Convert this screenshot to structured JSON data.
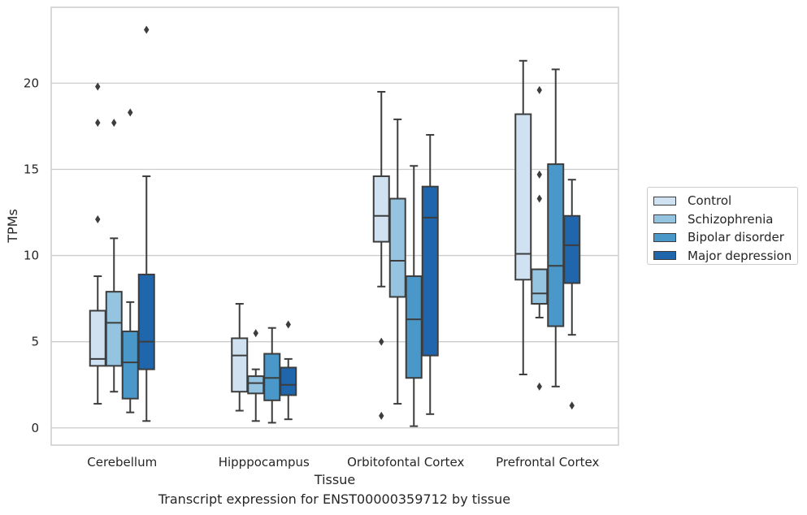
{
  "chart_data": {
    "type": "box",
    "title": "Transcript expression for ENST00000359712 by tissue",
    "xlabel": "Tissue",
    "ylabel": "TPMs",
    "ylim": [
      -1.0,
      24.4
    ],
    "yticks": [
      0,
      5,
      10,
      15,
      20
    ],
    "grid": "horizontal",
    "legend_position": "center-right, outside",
    "categories": [
      "Cerebellum",
      "Hipppocampus",
      "Orbitofontal Cortex",
      "Prefrontal Cortex"
    ],
    "series": [
      {
        "name": "Control",
        "color": "#d0e1f2",
        "boxes": [
          {
            "whisker_low": 1.4,
            "q1": 3.6,
            "median": 4.0,
            "q3": 6.8,
            "whisker_high": 8.8,
            "outliers": [
              12.1,
              17.7,
              19.8
            ]
          },
          {
            "whisker_low": 1.0,
            "q1": 2.1,
            "median": 4.2,
            "q3": 5.2,
            "whisker_high": 7.2,
            "outliers": []
          },
          {
            "whisker_low": 8.2,
            "q1": 10.8,
            "median": 12.3,
            "q3": 14.6,
            "whisker_high": 19.5,
            "outliers": [
              5.0,
              0.7
            ]
          },
          {
            "whisker_low": 3.1,
            "q1": 8.6,
            "median": 10.1,
            "q3": 18.2,
            "whisker_high": 21.3,
            "outliers": []
          }
        ]
      },
      {
        "name": "Schizophrenia",
        "color": "#94c4df",
        "boxes": [
          {
            "whisker_low": 2.1,
            "q1": 3.6,
            "median": 6.1,
            "q3": 7.9,
            "whisker_high": 11.0,
            "outliers": [
              17.7
            ]
          },
          {
            "whisker_low": 0.4,
            "q1": 2.0,
            "median": 2.6,
            "q3": 3.0,
            "whisker_high": 3.4,
            "outliers": [
              5.5
            ]
          },
          {
            "whisker_low": 1.4,
            "q1": 7.6,
            "median": 9.7,
            "q3": 13.3,
            "whisker_high": 17.9,
            "outliers": []
          },
          {
            "whisker_low": 6.4,
            "q1": 7.2,
            "median": 7.8,
            "q3": 9.2,
            "whisker_high": 9.2,
            "outliers": [
              13.3,
              14.7,
              19.6,
              2.4
            ]
          }
        ]
      },
      {
        "name": "Bipolar disorder",
        "color": "#4a98c9",
        "boxes": [
          {
            "whisker_low": 0.9,
            "q1": 1.7,
            "median": 3.8,
            "q3": 5.6,
            "whisker_high": 7.3,
            "outliers": [
              18.3
            ]
          },
          {
            "whisker_low": 0.3,
            "q1": 1.6,
            "median": 2.9,
            "q3": 4.3,
            "whisker_high": 5.8,
            "outliers": []
          },
          {
            "whisker_low": 0.1,
            "q1": 2.9,
            "median": 6.3,
            "q3": 8.8,
            "whisker_high": 15.2,
            "outliers": []
          },
          {
            "whisker_low": 2.4,
            "q1": 5.9,
            "median": 9.4,
            "q3": 15.3,
            "whisker_high": 20.8,
            "outliers": []
          }
        ]
      },
      {
        "name": "Major depression",
        "color": "#2066ac",
        "boxes": [
          {
            "whisker_low": 0.4,
            "q1": 3.4,
            "median": 5.0,
            "q3": 8.9,
            "whisker_high": 14.6,
            "outliers": [
              23.1
            ]
          },
          {
            "whisker_low": 0.5,
            "q1": 1.9,
            "median": 2.5,
            "q3": 3.5,
            "whisker_high": 4.0,
            "outliers": [
              6.0
            ]
          },
          {
            "whisker_low": 0.8,
            "q1": 4.2,
            "median": 12.2,
            "q3": 14.0,
            "whisker_high": 17.0,
            "outliers": []
          },
          {
            "whisker_low": 5.4,
            "q1": 8.4,
            "median": 10.6,
            "q3": 12.3,
            "whisker_high": 14.4,
            "outliers": [
              1.3
            ]
          }
        ]
      }
    ]
  }
}
